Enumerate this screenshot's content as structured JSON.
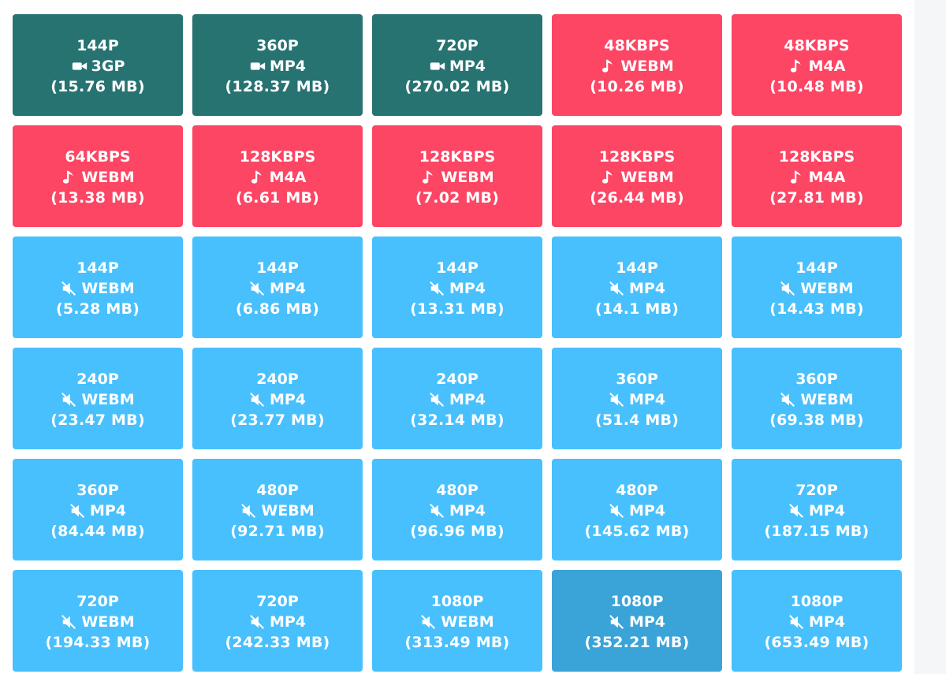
{
  "colors": {
    "video": "#277371",
    "audio": "#fd4564",
    "mute": "#48c0fd",
    "mute_active": "#3aa3d8"
  },
  "formats": [
    {
      "quality": "144P",
      "kind": "video",
      "icon": "video-camera-icon",
      "ext": "3GP",
      "size": "(15.76 MB)"
    },
    {
      "quality": "360P",
      "kind": "video",
      "icon": "video-camera-icon",
      "ext": "MP4",
      "size": "(128.37 MB)"
    },
    {
      "quality": "720P",
      "kind": "video",
      "icon": "video-camera-icon",
      "ext": "MP4",
      "size": "(270.02 MB)"
    },
    {
      "quality": "48KBPS",
      "kind": "audio",
      "icon": "music-note-icon",
      "ext": "WEBM",
      "size": "(10.26 MB)"
    },
    {
      "quality": "48KBPS",
      "kind": "audio",
      "icon": "music-note-icon",
      "ext": "M4A",
      "size": "(10.48 MB)"
    },
    {
      "quality": "64KBPS",
      "kind": "audio",
      "icon": "music-note-icon",
      "ext": "WEBM",
      "size": "(13.38 MB)"
    },
    {
      "quality": "128KBPS",
      "kind": "audio",
      "icon": "music-note-icon",
      "ext": "M4A",
      "size": "(6.61 MB)"
    },
    {
      "quality": "128KBPS",
      "kind": "audio",
      "icon": "music-note-icon",
      "ext": "WEBM",
      "size": "(7.02 MB)"
    },
    {
      "quality": "128KBPS",
      "kind": "audio",
      "icon": "music-note-icon",
      "ext": "WEBM",
      "size": "(26.44 MB)"
    },
    {
      "quality": "128KBPS",
      "kind": "audio",
      "icon": "music-note-icon",
      "ext": "M4A",
      "size": "(27.81 MB)"
    },
    {
      "quality": "144P",
      "kind": "mute",
      "icon": "muted-speaker-icon",
      "ext": "WEBM",
      "size": "(5.28 MB)"
    },
    {
      "quality": "144P",
      "kind": "mute",
      "icon": "muted-speaker-icon",
      "ext": "MP4",
      "size": "(6.86 MB)"
    },
    {
      "quality": "144P",
      "kind": "mute",
      "icon": "muted-speaker-icon",
      "ext": "MP4",
      "size": "(13.31 MB)"
    },
    {
      "quality": "144P",
      "kind": "mute",
      "icon": "muted-speaker-icon",
      "ext": "MP4",
      "size": "(14.1 MB)"
    },
    {
      "quality": "144P",
      "kind": "mute",
      "icon": "muted-speaker-icon",
      "ext": "WEBM",
      "size": "(14.43 MB)"
    },
    {
      "quality": "240P",
      "kind": "mute",
      "icon": "muted-speaker-icon",
      "ext": "WEBM",
      "size": "(23.47 MB)"
    },
    {
      "quality": "240P",
      "kind": "mute",
      "icon": "muted-speaker-icon",
      "ext": "MP4",
      "size": "(23.77 MB)"
    },
    {
      "quality": "240P",
      "kind": "mute",
      "icon": "muted-speaker-icon",
      "ext": "MP4",
      "size": "(32.14 MB)"
    },
    {
      "quality": "360P",
      "kind": "mute",
      "icon": "muted-speaker-icon",
      "ext": "MP4",
      "size": "(51.4 MB)"
    },
    {
      "quality": "360P",
      "kind": "mute",
      "icon": "muted-speaker-icon",
      "ext": "WEBM",
      "size": "(69.38 MB)"
    },
    {
      "quality": "360P",
      "kind": "mute",
      "icon": "muted-speaker-icon",
      "ext": "MP4",
      "size": "(84.44 MB)"
    },
    {
      "quality": "480P",
      "kind": "mute",
      "icon": "muted-speaker-icon",
      "ext": "WEBM",
      "size": "(92.71 MB)"
    },
    {
      "quality": "480P",
      "kind": "mute",
      "icon": "muted-speaker-icon",
      "ext": "MP4",
      "size": "(96.96 MB)"
    },
    {
      "quality": "480P",
      "kind": "mute",
      "icon": "muted-speaker-icon",
      "ext": "MP4",
      "size": "(145.62 MB)"
    },
    {
      "quality": "720P",
      "kind": "mute",
      "icon": "muted-speaker-icon",
      "ext": "MP4",
      "size": "(187.15 MB)"
    },
    {
      "quality": "720P",
      "kind": "mute",
      "icon": "muted-speaker-icon",
      "ext": "WEBM",
      "size": "(194.33 MB)"
    },
    {
      "quality": "720P",
      "kind": "mute",
      "icon": "muted-speaker-icon",
      "ext": "MP4",
      "size": "(242.33 MB)"
    },
    {
      "quality": "1080P",
      "kind": "mute",
      "icon": "muted-speaker-icon",
      "ext": "WEBM",
      "size": "(313.49 MB)"
    },
    {
      "quality": "1080P",
      "kind": "mute",
      "icon": "muted-speaker-icon",
      "ext": "MP4",
      "size": "(352.21 MB)",
      "hovered": true
    },
    {
      "quality": "1080P",
      "kind": "mute",
      "icon": "muted-speaker-icon",
      "ext": "MP4",
      "size": "(653.49 MB)"
    }
  ]
}
